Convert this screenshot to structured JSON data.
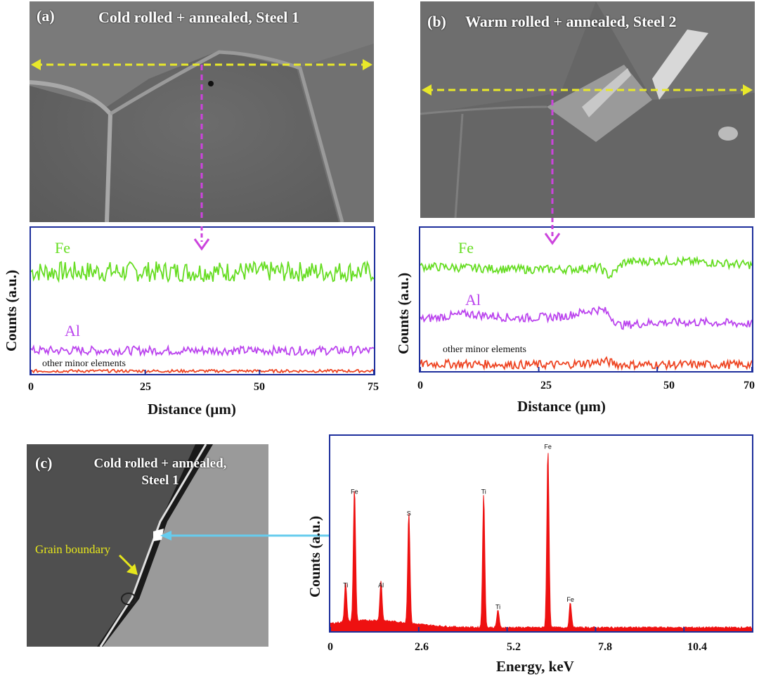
{
  "panel_a": {
    "label": "(a)",
    "title": "Cold rolled + annealed, Steel 1",
    "xlabel": "Distance (µm)",
    "ylabel": "Counts (a.u.)",
    "series": {
      "fe": "Fe",
      "al": "Al",
      "minor": "other minor elements"
    },
    "ticks": [
      "0",
      "25",
      "50",
      "75"
    ]
  },
  "panel_b": {
    "label": "(b)",
    "title": "Warm rolled + annealed, Steel 2",
    "xlabel": "Distance (µm)",
    "ylabel": "Counts (a.u.)",
    "series": {
      "fe": "Fe",
      "al": "Al",
      "minor": "other minor elements"
    },
    "ticks": [
      "0",
      "25",
      "50",
      "70"
    ]
  },
  "panel_c": {
    "label": "(c)",
    "title_line1": "Cold rolled + annealed,",
    "title_line2": "Steel 1",
    "annotation": "Grain boundary",
    "xlabel": "Energy, keV",
    "ylabel": "Counts (a.u.)",
    "ticks": [
      "0",
      "2.6",
      "5.2",
      "7.8",
      "10.4"
    ]
  },
  "colors": {
    "fe": "#66dd22",
    "al": "#bb44ee",
    "minor": "#ee4422",
    "spectrum": "#ee1111",
    "frame": "#1e2f9c",
    "scan_line": "#e8e82a",
    "scan_arrow": "#cc44dd",
    "cyan_arrow": "#66ccee"
  },
  "chart_data": [
    {
      "type": "line",
      "title": "Cold rolled + annealed, Steel 1",
      "xlabel": "Distance (µm)",
      "ylabel": "Counts (a.u.)",
      "xlim": [
        0,
        75
      ],
      "x_ticks": [
        0,
        25,
        50,
        75
      ],
      "series": [
        {
          "name": "Fe",
          "level": 0.7,
          "noise": 0.07
        },
        {
          "name": "Al",
          "level": 0.16,
          "noise": 0.03
        },
        {
          "name": "other minor elements",
          "level": 0.02,
          "noise": 0.01
        }
      ]
    },
    {
      "type": "line",
      "title": "Warm rolled + annealed, Steel 2",
      "xlabel": "Distance (µm)",
      "ylabel": "Counts (a.u.)",
      "xlim": [
        0,
        70
      ],
      "x_ticks": [
        0,
        25,
        50,
        70
      ],
      "series": [
        {
          "name": "Fe",
          "x": [
            0,
            10,
            20,
            30,
            38,
            40,
            43,
            50,
            60,
            70
          ],
          "y": [
            0.73,
            0.72,
            0.71,
            0.71,
            0.72,
            0.66,
            0.76,
            0.77,
            0.76,
            0.74
          ]
        },
        {
          "name": "Al",
          "x": [
            0,
            10,
            20,
            30,
            37,
            39,
            42,
            50,
            60,
            70
          ],
          "y": [
            0.36,
            0.4,
            0.37,
            0.38,
            0.43,
            0.42,
            0.32,
            0.34,
            0.34,
            0.33
          ]
        },
        {
          "name": "other minor elements",
          "x": [
            0,
            10,
            20,
            30,
            37,
            39,
            42,
            50,
            60,
            70
          ],
          "y": [
            0.05,
            0.05,
            0.045,
            0.045,
            0.06,
            0.07,
            0.045,
            0.045,
            0.045,
            0.045
          ]
        }
      ]
    },
    {
      "type": "bar",
      "xlabel": "Energy, keV",
      "ylabel": "Counts (a.u.)",
      "xlim": [
        0,
        12.4
      ],
      "x_ticks": [
        0,
        2.6,
        5.2,
        7.8,
        10.4
      ],
      "peaks": [
        {
          "label": "Ti",
          "energy": 0.45,
          "height": 0.22
        },
        {
          "label": "Fe",
          "energy": 0.71,
          "height": 0.74
        },
        {
          "label": "Al",
          "energy": 1.49,
          "height": 0.22
        },
        {
          "label": "S",
          "energy": 2.31,
          "height": 0.62
        },
        {
          "label": "Ti",
          "energy": 4.51,
          "height": 0.74
        },
        {
          "label": "Ti",
          "energy": 4.93,
          "height": 0.1
        },
        {
          "label": "Fe",
          "energy": 6.4,
          "height": 0.99
        },
        {
          "label": "Fe",
          "energy": 7.06,
          "height": 0.14
        }
      ]
    }
  ]
}
